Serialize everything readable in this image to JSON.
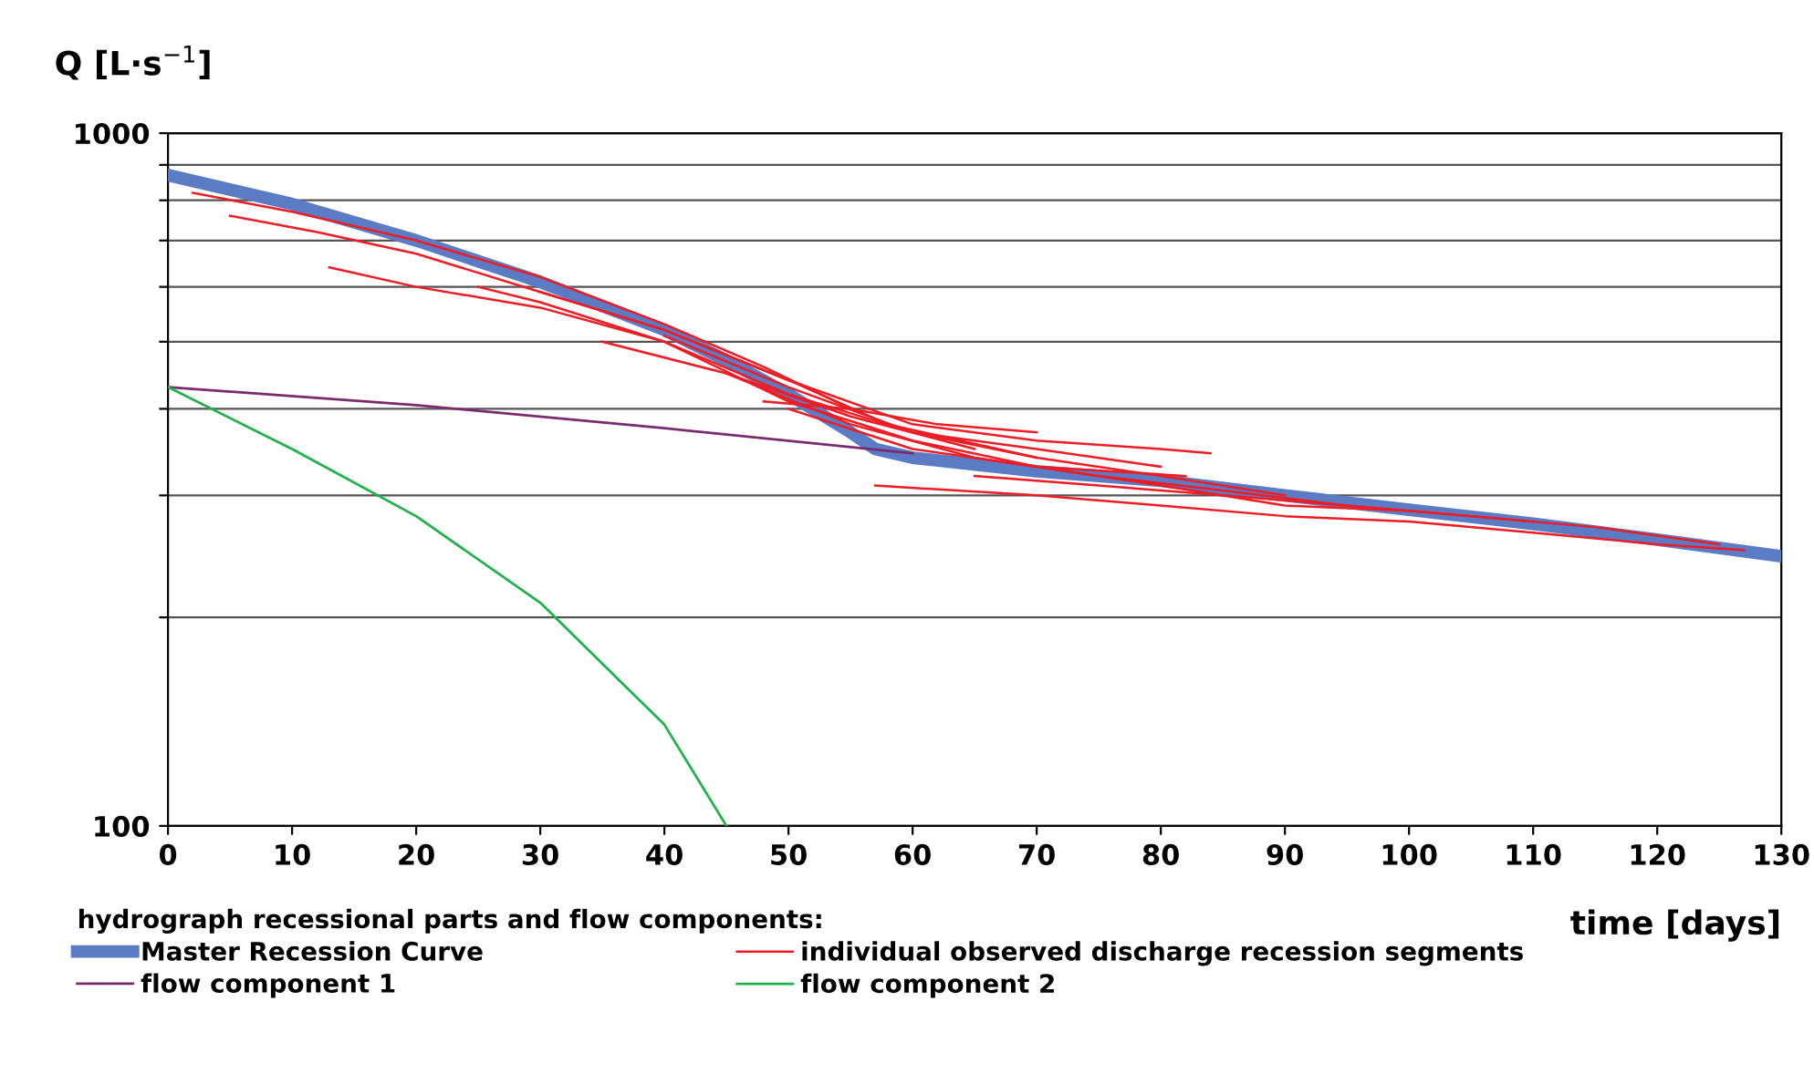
{
  "chart_data": {
    "type": "line",
    "ylabel": "Q [L·s$^{−1}$]",
    "xlabel": "time [days]",
    "legend_title": "hydrograph recessional parts and flow components:",
    "legend": "bottom",
    "log": "y",
    "grid": "y",
    "marker": "none",
    "line_style": "solid",
    "xlim": [
      0,
      130
    ],
    "xticks": [
      0,
      10,
      20,
      30,
      40,
      50,
      60,
      70,
      80,
      90,
      100,
      110,
      120,
      130
    ],
    "ylim": [
      100,
      1000
    ],
    "yticks": [
      100,
      {
        "value": 200,
        "label": null
      },
      {
        "value": 300,
        "label": null
      },
      {
        "value": 400,
        "label": null
      },
      {
        "value": 500,
        "label": null
      },
      {
        "value": 600,
        "label": null
      },
      {
        "value": 700,
        "label": null
      },
      {
        "value": 800,
        "label": null
      },
      {
        "value": 900,
        "label": null
      },
      1000
    ],
    "series": [
      {
        "name": "Master Recession Curve",
        "color": "#5b7cc4",
        "x": [
          0,
          10,
          20,
          30,
          40,
          45,
          50,
          55,
          57,
          60,
          70,
          80,
          90,
          100,
          110,
          120,
          130
        ],
        "values": [
          870,
          790,
          700,
          610,
          520,
          470,
          420,
          370,
          350,
          340,
          325,
          315,
          300,
          286,
          273,
          259,
          245
        ]
      },
      {
        "name": "flow component 1",
        "color": "#7b2a6e",
        "x": [
          0,
          20,
          40,
          60
        ],
        "values": [
          430,
          405,
          375,
          345
        ]
      },
      {
        "name": "individual observed discharge recession segments",
        "color": "#ee1c25",
        "x": [
          5,
          12,
          20,
          30,
          40,
          50,
          60,
          70,
          80,
          84
        ],
        "values": [
          760,
          720,
          670,
          590,
          520,
          440,
          380,
          360,
          350,
          345
        ]
      },
      {
        "name": "flow component 2",
        "color": "#1fb24a",
        "x": [
          0,
          10,
          20,
          30,
          40,
          45
        ],
        "values": [
          430,
          350,
          280,
          210,
          140,
          100
        ]
      },
      {
        "color": "#ee1c25",
        "x": [
          2,
          10,
          20,
          30,
          40,
          48,
          55
        ],
        "values": [
          820,
          770,
          700,
          620,
          530,
          460,
          400
        ]
      },
      {
        "color": "#ee1c25",
        "x": [
          13,
          20,
          30,
          40,
          50,
          60,
          70,
          80
        ],
        "values": [
          640,
          600,
          560,
          500,
          420,
          370,
          350,
          330
        ]
      },
      {
        "color": "#ee1c25",
        "x": [
          25,
          30,
          40,
          50,
          60,
          70,
          82
        ],
        "values": [
          600,
          570,
          500,
          410,
          360,
          330,
          320
        ]
      },
      {
        "color": "#ee1c25",
        "x": [
          30,
          40,
          50,
          58,
          70
        ],
        "values": [
          590,
          520,
          440,
          380,
          340
        ]
      },
      {
        "color": "#ee1c25",
        "x": [
          40,
          50,
          60,
          70,
          80,
          90
        ],
        "values": [
          510,
          430,
          370,
          340,
          320,
          300
        ]
      },
      {
        "color": "#ee1c25",
        "x": [
          45,
          55,
          65,
          75,
          85,
          95
        ],
        "values": [
          450,
          380,
          340,
          320,
          305,
          290
        ]
      },
      {
        "color": "#ee1c25",
        "x": [
          50,
          60,
          70,
          80,
          90,
          100,
          110
        ],
        "values": [
          400,
          350,
          330,
          310,
          290,
          285,
          275
        ]
      },
      {
        "color": "#ee1c25",
        "x": [
          57,
          70,
          80,
          90,
          100,
          110,
          120,
          127
        ],
        "values": [
          310,
          300,
          290,
          280,
          275,
          265,
          255,
          250
        ]
      },
      {
        "color": "#ee1c25",
        "x": [
          65,
          75,
          85,
          95,
          105,
          115,
          125
        ],
        "values": [
          320,
          310,
          300,
          290,
          280,
          270,
          255
        ]
      },
      {
        "color": "#ee1c25",
        "x": [
          48,
          55,
          62,
          70
        ],
        "values": [
          410,
          400,
          380,
          370
        ]
      },
      {
        "color": "#ee1c25",
        "x": [
          35,
          45,
          55,
          65
        ],
        "values": [
          500,
          450,
          390,
          350
        ]
      }
    ]
  }
}
